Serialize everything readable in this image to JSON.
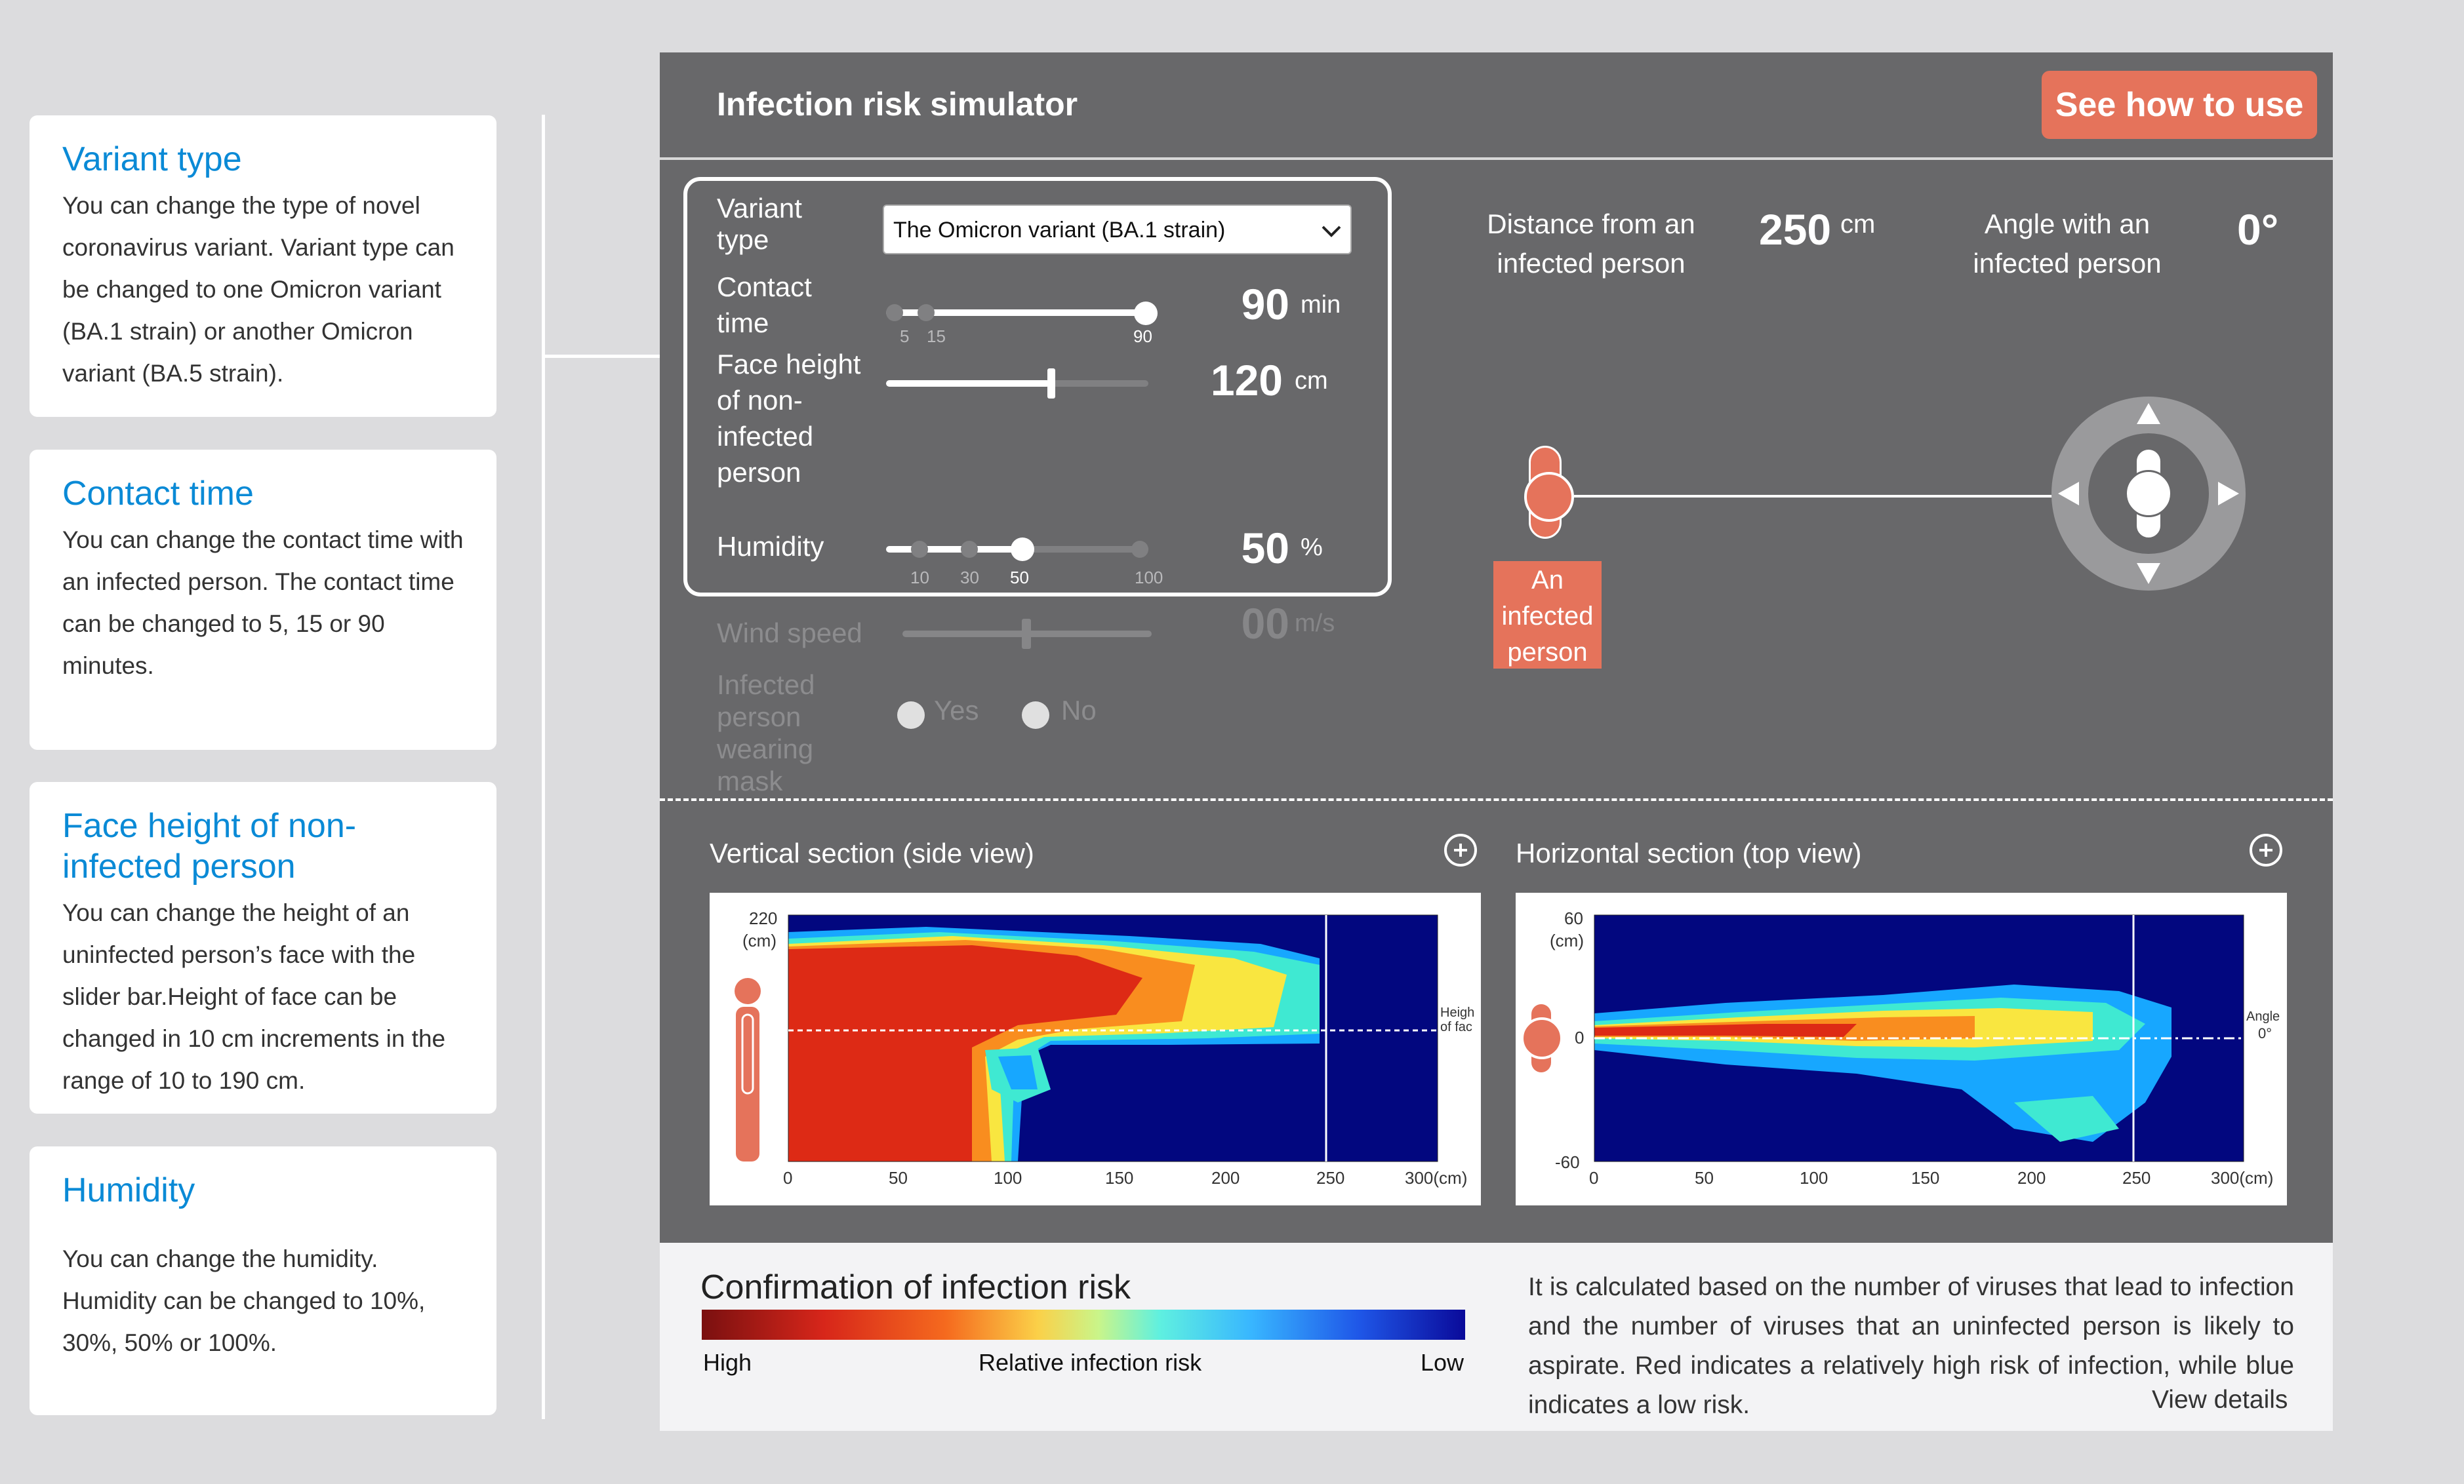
{
  "cards": [
    {
      "title": "Variant type",
      "body": "You can change the type of novel coronavirus variant. Variant type can be changed to one Omicron variant (BA.1 strain) or another Omicron variant (BA.5 strain)."
    },
    {
      "title": "Contact time",
      "body": "You can change the contact time with an infected person. The contact time can be changed to 5, 15 or 90 minutes."
    },
    {
      "title": "Face height of non-infected person",
      "body": "You can change the height of an uninfected person’s face with the slider bar.Height of face can be changed in 10 cm increments in the range of 10 to 190 cm."
    },
    {
      "title": "Humidity",
      "body": "You can change the humidity. Humidity can be changed to 10%, 30%, 50% or 100%."
    }
  ],
  "header": {
    "title": "Infection risk simulator",
    "help_button": "See how to use"
  },
  "controls": {
    "variant": {
      "label": "Variant type",
      "selected": "The Omicron variant (BA.1 strain)"
    },
    "contact": {
      "label": "Contact time",
      "value": "90",
      "unit": "min",
      "ticks": [
        "5",
        "15",
        "90"
      ]
    },
    "face": {
      "label": "Face height of non-infected person",
      "value": "120",
      "unit": "cm"
    },
    "humidity": {
      "label": "Humidity",
      "value": "50",
      "unit": "%",
      "ticks": [
        "10",
        "30",
        "50",
        "100"
      ]
    },
    "wind": {
      "label": "Wind speed",
      "value": "00",
      "unit": "m/s"
    },
    "mask": {
      "label": "Infected person wearing mask",
      "yes": "Yes",
      "no": "No"
    }
  },
  "status": {
    "distance_label": "Distance from an infected person",
    "distance_value": "250",
    "distance_unit": "cm",
    "angle_label": "Angle with an infected person",
    "angle_value": "0°",
    "infected_label": "An infected person"
  },
  "side_view": {
    "title": "Vertical section (side view)",
    "y_top": "220",
    "y_unit": "(cm)",
    "x_ticks": [
      "0",
      "50",
      "100",
      "150",
      "200",
      "250",
      "300(cm)"
    ],
    "side_label": "Heigh of fac"
  },
  "top_view": {
    "title": "Horizontal section (top view)",
    "y_top": "60",
    "y_unit": "(cm)",
    "y_zero": "0",
    "y_bottom": "-60",
    "x_ticks": [
      "0",
      "50",
      "100",
      "150",
      "200",
      "250",
      "300(cm)"
    ],
    "side_label": "Angle",
    "side_value": "0°"
  },
  "legend": {
    "title": "Confirmation of infection risk",
    "high": "High",
    "mid": "Relative infection risk",
    "low": "Low"
  },
  "description": {
    "text": "It is calculated based on the number of viruses that lead to infection and the number of viruses that an uninfected person is likely to aspirate. Red indicates a relatively high risk of infection, while blue indicates a low risk.",
    "link": "View details"
  },
  "colors": {
    "accent": "#e5735b",
    "title_blue": "#0a8ad6",
    "panel": "#68686a",
    "heat_bg": "#02077f"
  }
}
